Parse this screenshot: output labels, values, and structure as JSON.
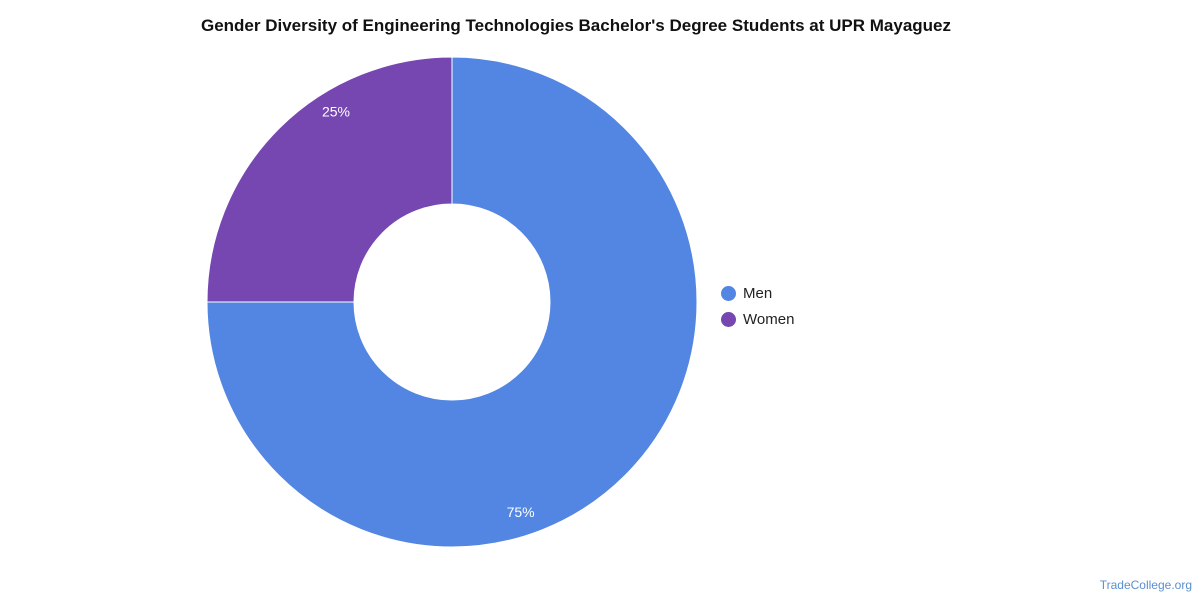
{
  "chart_data": {
    "type": "pie",
    "variant": "donut",
    "title": "Gender Diversity of Engineering Technologies Bachelor's Degree Students at UPR Mayaguez",
    "categories": [
      "Men",
      "Women"
    ],
    "values": [
      75,
      25
    ],
    "labels": [
      "75%",
      "25%"
    ],
    "colors": [
      "#5286e2",
      "#7647b1"
    ],
    "legend_position": "right"
  },
  "watermark": "TradeCollege.org"
}
